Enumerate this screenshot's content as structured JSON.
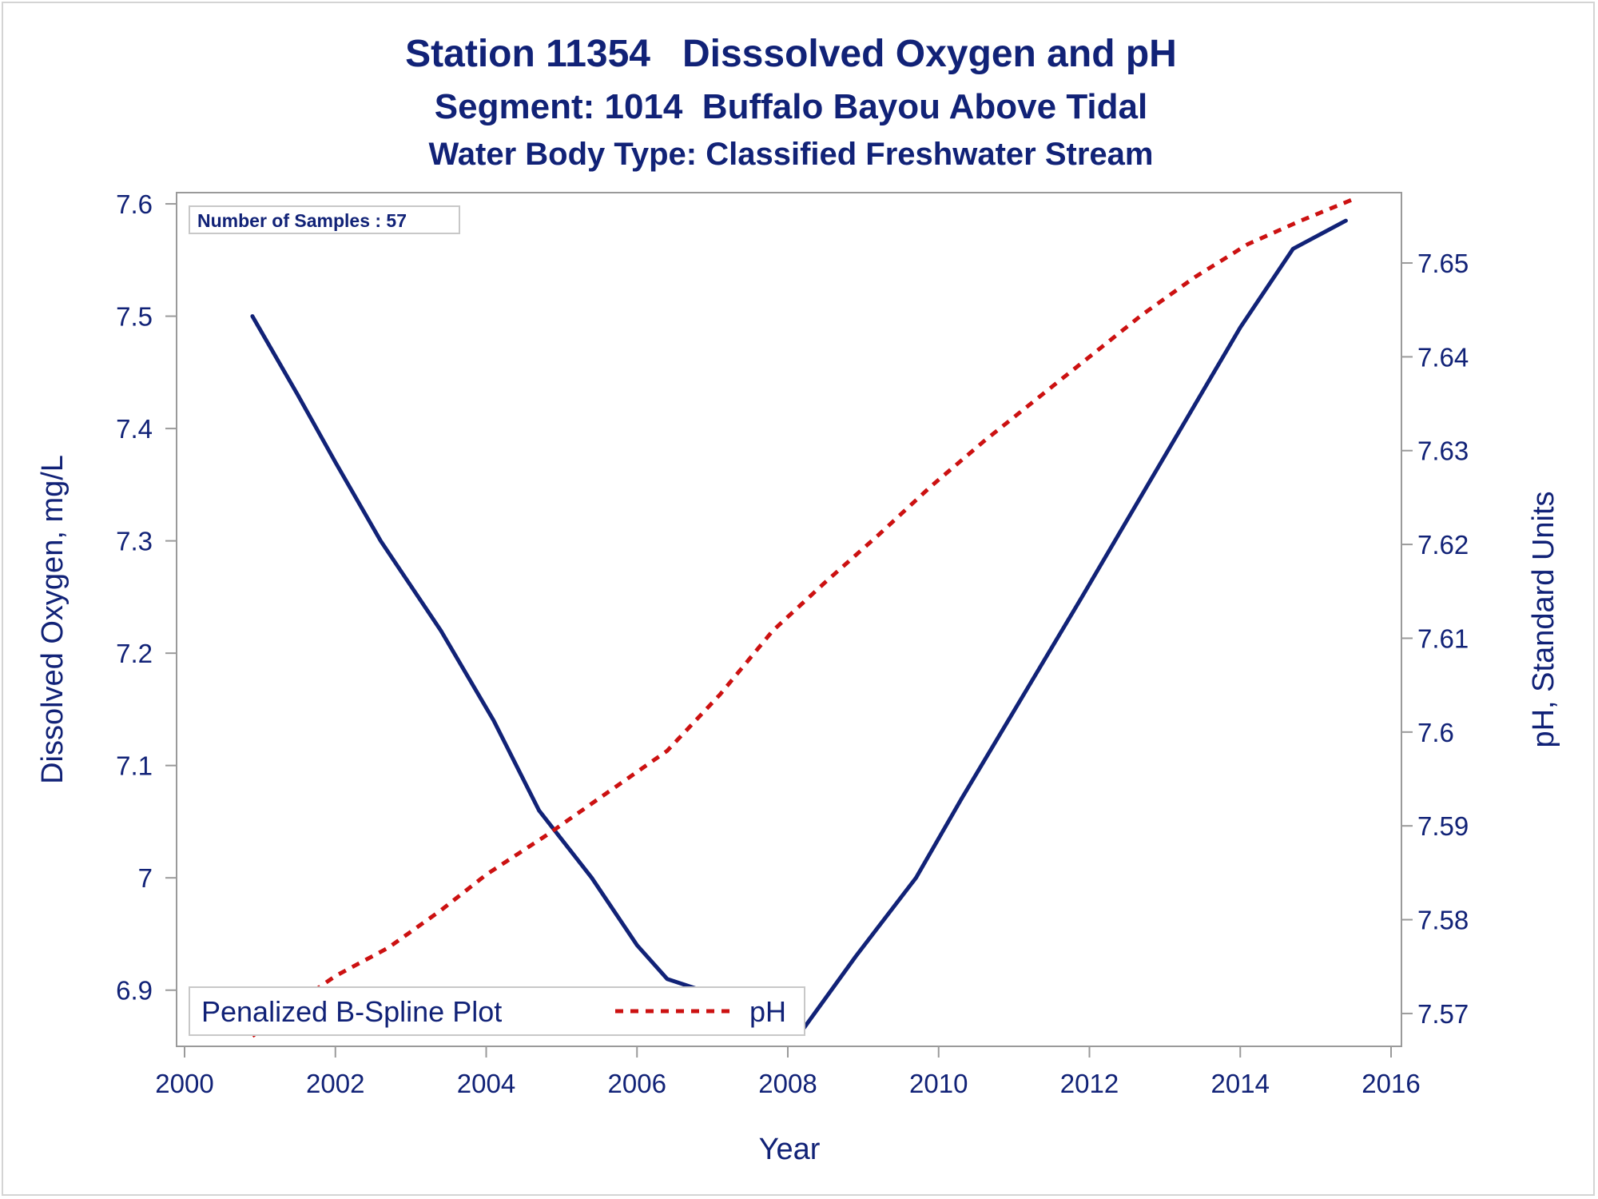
{
  "chart_data": {
    "type": "line",
    "title": "Station 11354   Disssolved Oxygen and pH",
    "subtitle": "Segment: 1014  Buffalo Bayou Above Tidal",
    "subtitle2": "Water Body Type: Classified Freshwater Stream",
    "xlabel": "Year",
    "ylabel": "Dissolved Oxygen, mg/L",
    "y2label": "pH, Standard Units",
    "xlim": [
      2000,
      2016
    ],
    "ylim": [
      6.85,
      7.61
    ],
    "y2lim": [
      7.5665,
      7.6575
    ],
    "x_ticks": [
      "2000",
      "2002",
      "2004",
      "2006",
      "2008",
      "2010",
      "2012",
      "2014",
      "2016"
    ],
    "y_ticks": [
      "6.9",
      "7",
      "7.1",
      "7.2",
      "7.3",
      "7.4",
      "7.5",
      "7.6"
    ],
    "y2_ticks": [
      "7.57",
      "7.58",
      "7.59",
      "7.6",
      "7.61",
      "7.62",
      "7.63",
      "7.64",
      "7.65"
    ],
    "annotation": "Number of Samples : 57",
    "legend": {
      "title": "Penalized B-Spline Plot",
      "position": "bottom-left"
    },
    "grid": false,
    "series": [
      {
        "axis": "left",
        "color": "#112277",
        "style": "solid",
        "points": [
          [
            2000.9,
            7.5
          ],
          [
            2001.5,
            7.43
          ],
          [
            2002.0,
            7.37
          ],
          [
            2002.6,
            7.3
          ],
          [
            2003.4,
            7.22
          ],
          [
            2004.1,
            7.14
          ],
          [
            2004.7,
            7.06
          ],
          [
            2005.4,
            7.0
          ],
          [
            2006.0,
            6.94
          ],
          [
            2006.4,
            6.91
          ],
          [
            2007.3,
            6.89
          ],
          [
            2008.0,
            6.865
          ],
          [
            2008.2,
            6.865
          ],
          [
            2008.9,
            6.93
          ],
          [
            2009.7,
            7.0
          ],
          [
            2010.3,
            7.07
          ],
          [
            2011.1,
            7.16
          ],
          [
            2011.9,
            7.25
          ],
          [
            2012.6,
            7.33
          ],
          [
            2013.3,
            7.41
          ],
          [
            2014.0,
            7.49
          ],
          [
            2014.7,
            7.56
          ],
          [
            2015.4,
            7.585
          ]
        ]
      },
      {
        "name": "pH",
        "axis": "right",
        "color": "#cc1111",
        "style": "dashed",
        "points": [
          [
            2000.9,
            7.5676
          ],
          [
            2001.5,
            7.5712
          ],
          [
            2002.0,
            7.574
          ],
          [
            2002.7,
            7.577
          ],
          [
            2003.4,
            7.581
          ],
          [
            2004.0,
            7.5848
          ],
          [
            2004.8,
            7.589
          ],
          [
            2005.6,
            7.5935
          ],
          [
            2006.4,
            7.598
          ],
          [
            2007.1,
            7.604
          ],
          [
            2007.8,
            7.6108
          ],
          [
            2008.5,
            7.616
          ],
          [
            2009.2,
            7.621
          ],
          [
            2009.9,
            7.6262
          ],
          [
            2010.6,
            7.631
          ],
          [
            2011.3,
            7.6355
          ],
          [
            2012.0,
            7.64
          ],
          [
            2012.7,
            7.6445
          ],
          [
            2013.4,
            7.6485
          ],
          [
            2014.1,
            7.652
          ],
          [
            2014.8,
            7.6545
          ],
          [
            2015.5,
            7.6568
          ]
        ]
      }
    ]
  }
}
